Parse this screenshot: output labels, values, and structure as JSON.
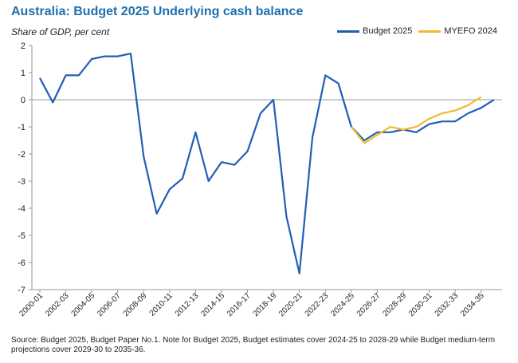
{
  "title": "Australia: Budget 2025 Underlying cash balance",
  "chart_data": {
    "type": "line",
    "ylabel": "Share of GDP, per cent",
    "ylim": [
      -7,
      2
    ],
    "yticks": [
      2,
      1,
      0,
      -1,
      -2,
      -3,
      -4,
      -5,
      -6,
      -7
    ],
    "x": [
      "2000-01",
      "2001-02",
      "2002-03",
      "2003-04",
      "2004-05",
      "2005-06",
      "2006-07",
      "2007-08",
      "2008-09",
      "2009-10",
      "2010-11",
      "2011-12",
      "2012-13",
      "2013-14",
      "2014-15",
      "2015-16",
      "2016-17",
      "2017-18",
      "2018-19",
      "2019-20",
      "2020-21",
      "2021-22",
      "2022-23",
      "2023-24",
      "2024-25",
      "2025-26",
      "2026-27",
      "2027-28",
      "2028-29",
      "2029-30",
      "2030-31",
      "2031-32",
      "2032-33",
      "2033-34",
      "2034-35",
      "2035-36"
    ],
    "xtick_labels": [
      "2000-01",
      "2002-03",
      "2004-05",
      "2006-07",
      "2008-09",
      "2010-11",
      "2012-13",
      "2014-15",
      "2016-17",
      "2018-19",
      "2020-21",
      "2022-23",
      "2024-25",
      "2026-27",
      "2028-29",
      "2030-31",
      "2032-33",
      "2034-35"
    ],
    "legend_position": "top-right",
    "series": [
      {
        "name": "Budget 2025",
        "color": "#1f5fb4",
        "values": [
          0.8,
          -0.1,
          0.9,
          0.9,
          1.5,
          1.6,
          1.6,
          1.7,
          -2.1,
          -4.2,
          -3.3,
          -2.9,
          -1.2,
          -3.0,
          -2.3,
          -2.4,
          -1.9,
          -0.5,
          0.0,
          -4.3,
          -6.4,
          -1.4,
          0.9,
          0.6,
          -1.0,
          -1.5,
          -1.2,
          -1.2,
          -1.1,
          -1.2,
          -0.9,
          -0.8,
          -0.8,
          -0.5,
          -0.3,
          0.0
        ]
      },
      {
        "name": "MYEFO 2024",
        "color": "#f5b830",
        "values": [
          null,
          null,
          null,
          null,
          null,
          null,
          null,
          null,
          null,
          null,
          null,
          null,
          null,
          null,
          null,
          null,
          null,
          null,
          null,
          null,
          null,
          null,
          null,
          null,
          -1.0,
          -1.6,
          -1.3,
          -1.0,
          -1.1,
          -1.0,
          -0.7,
          -0.5,
          -0.4,
          -0.2,
          0.1,
          null
        ]
      }
    ]
  },
  "source": "Source: Budget 2025, Budget Paper No.1. Note  for Budget 2025, Budget estimates cover 2024-25 to 2028-29 while Budget medium-term projections cover 2029-30 to 2035-36."
}
